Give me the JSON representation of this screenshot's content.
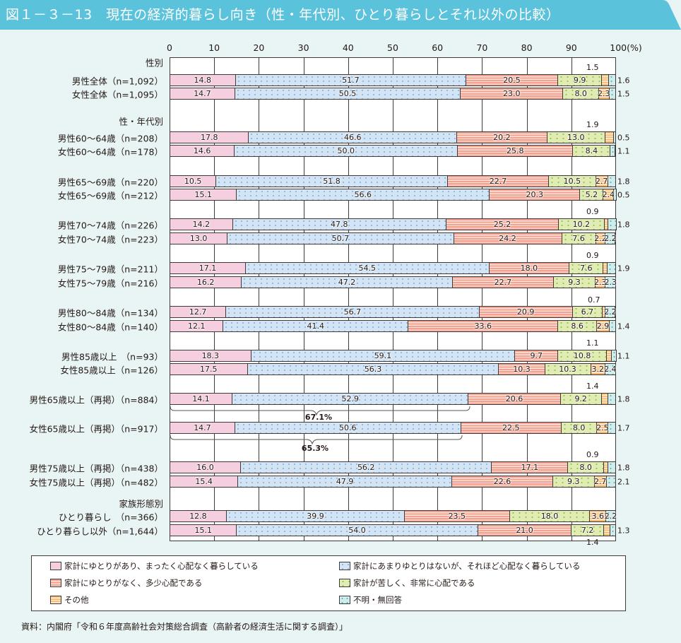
{
  "title": "図１－３－13　現在の経済的暮らし向き（性・年代別、ひとり暮らしとそれ以外の比較）",
  "colors": {
    "title_bar": "#5bc2db",
    "background": "#e9f4f4",
    "series": [
      "#f5cfe0",
      "#d3e4f4",
      "#f2a291",
      "#e1ecb3",
      "#f7b86e",
      "#d2ecec"
    ]
  },
  "axis": {
    "ticks": [
      "0",
      "10",
      "20",
      "30",
      "40",
      "50",
      "60",
      "70",
      "80",
      "90",
      "100(%)"
    ]
  },
  "group_labels": {
    "sex": "性別",
    "sex_age": "性・年代別",
    "family": "家族形態別"
  },
  "rows": [
    {
      "label": "男性全体（n=1,092）",
      "values": [
        14.8,
        51.7,
        20.5,
        9.9,
        1.5,
        1.6
      ]
    },
    {
      "label": "女性全体（n=1,095）",
      "values": [
        14.7,
        50.5,
        23.0,
        8.0,
        2.3,
        1.5
      ]
    },
    {
      "label": "男性60～64歳（n=208）",
      "values": [
        17.8,
        46.6,
        20.2,
        13.0,
        1.9,
        0.5
      ]
    },
    {
      "label": "女性60～64歳（n=178）",
      "values": [
        14.6,
        50.0,
        25.8,
        8.4,
        0.0,
        1.1
      ]
    },
    {
      "label": "男性65～69歳（n=220）",
      "values": [
        10.5,
        51.8,
        22.7,
        10.5,
        2.7,
        1.8
      ]
    },
    {
      "label": "女性65～69歳（n=212）",
      "values": [
        15.1,
        56.6,
        20.3,
        5.2,
        2.4,
        0.5
      ]
    },
    {
      "label": "男性70～74歳（n=226）",
      "values": [
        14.2,
        47.8,
        25.2,
        10.2,
        0.9,
        1.8
      ]
    },
    {
      "label": "女性70～74歳（n=223）",
      "values": [
        13.0,
        50.7,
        24.2,
        7.6,
        2.2,
        2.2
      ]
    },
    {
      "label": "男性75～79歳（n=211）",
      "values": [
        17.1,
        54.5,
        18.0,
        7.6,
        0.9,
        1.9
      ]
    },
    {
      "label": "女性75～79歳（n=216）",
      "values": [
        16.2,
        47.2,
        22.7,
        9.3,
        2.3,
        2.3
      ]
    },
    {
      "label": "男性80～84歳（n=134）",
      "values": [
        12.7,
        56.7,
        20.9,
        6.7,
        0.7,
        2.2
      ]
    },
    {
      "label": "女性80～84歳（n=140）",
      "values": [
        12.1,
        41.4,
        33.6,
        8.6,
        2.9,
        1.4
      ]
    },
    {
      "label": "男性85歳以上　（n=93）",
      "values": [
        18.3,
        59.1,
        9.7,
        10.8,
        1.1,
        1.1
      ]
    },
    {
      "label": "女性85歳以上（n=126）",
      "values": [
        17.5,
        56.3,
        10.3,
        10.3,
        3.2,
        2.4
      ]
    },
    {
      "label": "男性65歳以上（再掲）（n=884）",
      "values": [
        14.1,
        52.9,
        20.6,
        9.2,
        1.4,
        1.8
      ]
    },
    {
      "label": "女性65歳以上（再掲）（n=917）",
      "values": [
        14.7,
        50.6,
        22.5,
        8.0,
        2.5,
        1.7
      ]
    },
    {
      "label": "男性75歳以上（再掲）（n=438）",
      "values": [
        16.0,
        56.2,
        17.1,
        8.0,
        0.9,
        1.8
      ]
    },
    {
      "label": "女性75歳以上（再掲）（n=482）",
      "values": [
        15.4,
        47.9,
        22.6,
        9.3,
        2.7,
        2.1
      ]
    },
    {
      "label": "ひとり暮らし　（n=366）",
      "values": [
        12.8,
        39.9,
        23.5,
        18.0,
        3.6,
        2.2
      ]
    },
    {
      "label": "ひとり暮らし以外（n=1,644）",
      "values": [
        15.1,
        54.0,
        21.0,
        7.2,
        1.4,
        1.3
      ]
    }
  ],
  "bracket_labels": {
    "male65": "67.1%",
    "female65": "65.3%"
  },
  "legend": [
    "家計にゆとりがあり、まったく心配なく暮らしている",
    "家計にあまりゆとりはないが、それほど心配なく暮らしている",
    "家計にゆとりがなく、多少心配である",
    "家計が苦しく、非常に心配である",
    "その他",
    "不明・無回答"
  ],
  "source": "資料：内閣府「令和６年度高齢社会対策総合調査（高齢者の経済生活に関する調査）」",
  "chart_data": {
    "type": "bar",
    "orientation": "horizontal",
    "stacked": true,
    "percent_stacked": true,
    "title": "図１－３－13　現在の経済的暮らし向き（性・年代別、ひとり暮らしとそれ以外の比較）",
    "xlabel": "(%)",
    "ylabel": "",
    "xlim": [
      0,
      100
    ],
    "x_ticks": [
      0,
      10,
      20,
      30,
      40,
      50,
      60,
      70,
      80,
      90,
      100
    ],
    "grid": true,
    "legend_position": "bottom",
    "groups": [
      {
        "name": "性別",
        "categories": [
          "男性全体（n=1,092）",
          "女性全体（n=1,095）"
        ]
      },
      {
        "name": "性・年代別",
        "categories": [
          "男性60～64歳（n=208）",
          "女性60～64歳（n=178）",
          "男性65～69歳（n=220）",
          "女性65～69歳（n=212）",
          "男性70～74歳（n=226）",
          "女性70～74歳（n=223）",
          "男性75～79歳（n=211）",
          "女性75～79歳（n=216）",
          "男性80～84歳（n=134）",
          "女性80～84歳（n=140）",
          "男性85歳以上（n=93）",
          "女性85歳以上（n=126）",
          "男性65歳以上（再掲）（n=884）",
          "女性65歳以上（再掲）（n=917）",
          "男性75歳以上（再掲）（n=438）",
          "女性75歳以上（再掲）（n=482）"
        ]
      },
      {
        "name": "家族形態別",
        "categories": [
          "ひとり暮らし（n=366）",
          "ひとり暮らし以外（n=1,644）"
        ]
      }
    ],
    "categories": [
      "男性全体（n=1,092）",
      "女性全体（n=1,095）",
      "男性60～64歳（n=208）",
      "女性60～64歳（n=178）",
      "男性65～69歳（n=220）",
      "女性65～69歳（n=212）",
      "男性70～74歳（n=226）",
      "女性70～74歳（n=223）",
      "男性75～79歳（n=211）",
      "女性75～79歳（n=216）",
      "男性80～84歳（n=134）",
      "女性80～84歳（n=140）",
      "男性85歳以上（n=93）",
      "女性85歳以上（n=126）",
      "男性65歳以上（再掲）（n=884）",
      "女性65歳以上（再掲）（n=917）",
      "男性75歳以上（再掲）（n=438）",
      "女性75歳以上（再掲）（n=482）",
      "ひとり暮らし（n=366）",
      "ひとり暮らし以外（n=1,644）"
    ],
    "series": [
      {
        "name": "家計にゆとりがあり、まったく心配なく暮らしている",
        "values": [
          14.8,
          14.7,
          17.8,
          14.6,
          10.5,
          15.1,
          14.2,
          13.0,
          17.1,
          16.2,
          12.7,
          12.1,
          18.3,
          17.5,
          14.1,
          14.7,
          16.0,
          15.4,
          12.8,
          15.1
        ]
      },
      {
        "name": "家計にあまりゆとりはないが、それほど心配なく暮らしている",
        "values": [
          51.7,
          50.5,
          46.6,
          50.0,
          51.8,
          56.6,
          47.8,
          50.7,
          54.5,
          47.2,
          56.7,
          41.4,
          59.1,
          56.3,
          52.9,
          50.6,
          56.2,
          47.9,
          39.9,
          54.0
        ]
      },
      {
        "name": "家計にゆとりがなく、多少心配である",
        "values": [
          20.5,
          23.0,
          20.2,
          25.8,
          22.7,
          20.3,
          25.2,
          24.2,
          18.0,
          22.7,
          20.9,
          33.6,
          9.7,
          10.3,
          20.6,
          22.5,
          17.1,
          22.6,
          23.5,
          21.0
        ]
      },
      {
        "name": "家計が苦しく、非常に心配である",
        "values": [
          9.9,
          8.0,
          13.0,
          8.4,
          10.5,
          5.2,
          10.2,
          7.6,
          7.6,
          9.3,
          6.7,
          8.6,
          10.8,
          10.3,
          9.2,
          8.0,
          8.0,
          9.3,
          18.0,
          7.2
        ]
      },
      {
        "name": "その他",
        "values": [
          1.5,
          2.3,
          1.9,
          null,
          2.7,
          2.4,
          0.9,
          2.2,
          0.9,
          2.3,
          0.7,
          2.9,
          1.1,
          3.2,
          1.4,
          2.5,
          0.9,
          2.7,
          3.6,
          1.4
        ]
      },
      {
        "name": "不明・無回答",
        "values": [
          1.6,
          1.5,
          0.5,
          1.1,
          1.8,
          0.5,
          1.8,
          2.2,
          1.9,
          2.3,
          2.2,
          1.4,
          1.1,
          2.4,
          1.8,
          1.7,
          1.8,
          2.1,
          2.2,
          1.3
        ]
      }
    ],
    "annotations": [
      {
        "text": "67.1%",
        "target": "男性65歳以上（再掲）",
        "note": "sum of first two categories"
      },
      {
        "text": "65.3%",
        "target": "女性65歳以上（再掲）",
        "note": "sum of first two categories"
      }
    ]
  }
}
